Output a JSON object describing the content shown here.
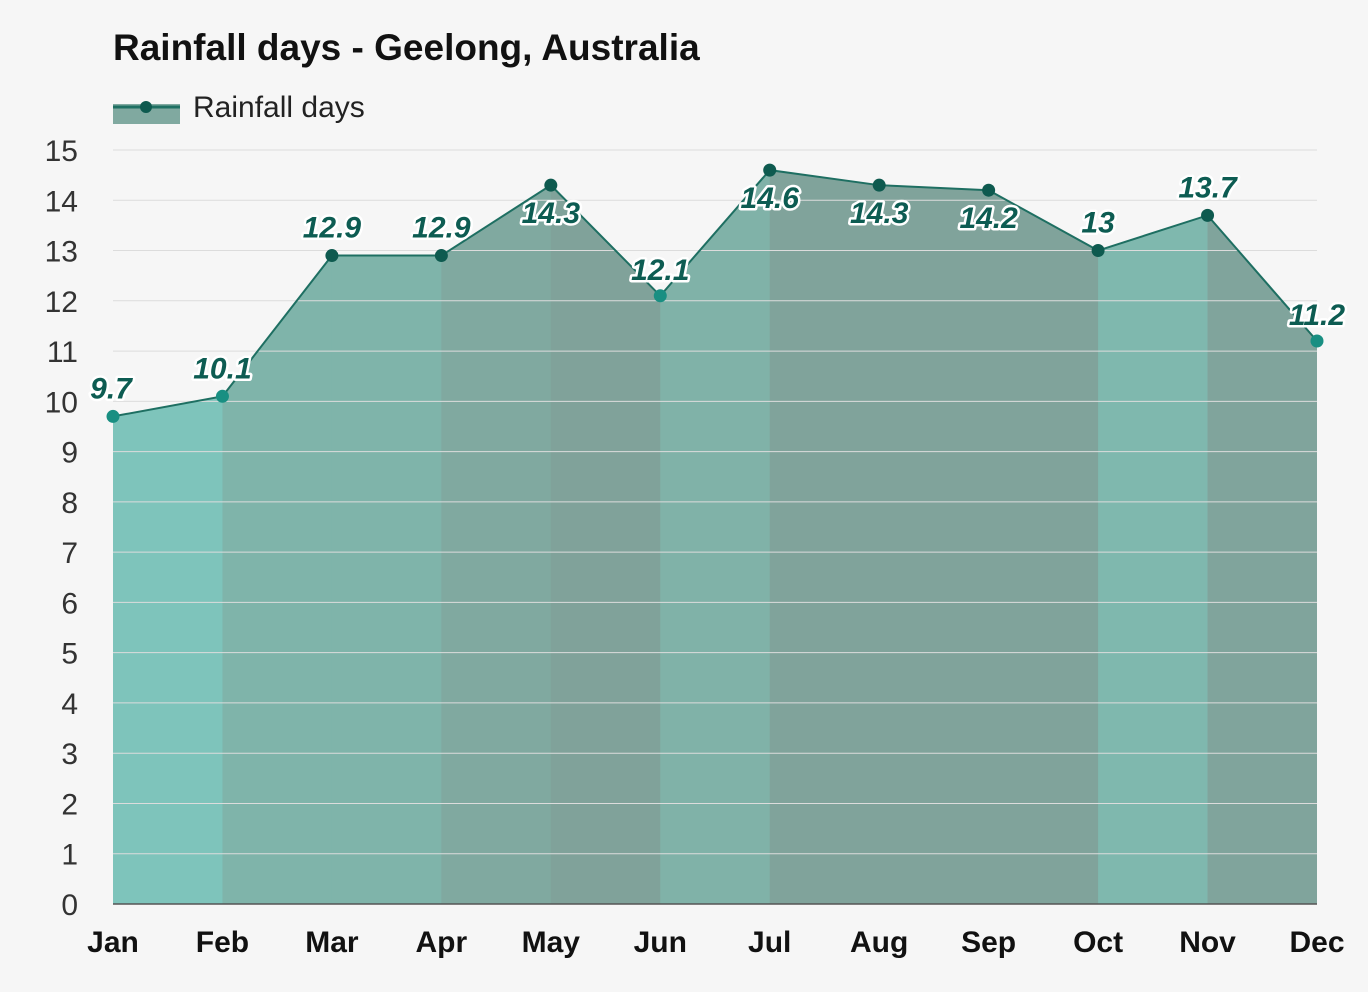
{
  "chart_data": {
    "type": "area",
    "title": "Rainfall days - Geelong, Australia",
    "legend": {
      "label": "Rainfall days",
      "placement": "top-left"
    },
    "categories": [
      "Jan",
      "Feb",
      "Mar",
      "Apr",
      "May",
      "Jun",
      "Jul",
      "Aug",
      "Sep",
      "Oct",
      "Nov",
      "Dec"
    ],
    "series": [
      {
        "name": "Rainfall days",
        "values": [
          9.7,
          10.1,
          12.9,
          12.9,
          14.3,
          12.1,
          14.6,
          14.3,
          14.2,
          13,
          13.7,
          11.2
        ]
      }
    ],
    "data_labels": [
      "9.7",
      "10.1",
      "12.9",
      "12.9",
      "14.3",
      "12.1",
      "14.6",
      "14.3",
      "14.2",
      "13",
      "13.7",
      "11.2"
    ],
    "yticks": [
      "0",
      "1",
      "2",
      "3",
      "4",
      "5",
      "6",
      "7",
      "8",
      "9",
      "10",
      "11",
      "12",
      "13",
      "14",
      "15"
    ],
    "ylim": [
      0,
      15
    ],
    "grid": true,
    "colors": {
      "line": "#1e6f62",
      "marker": "#0e5a4f",
      "label": "#0d5c52",
      "band_fills": [
        "#7ec4bb",
        "#7fb4aa",
        "#7fb4aa",
        "#80a9a0",
        "#80a29a",
        "#80b2a8",
        "#80a39b",
        "#80a39b",
        "#80a39b",
        "#7fb8ae",
        "#80a49c",
        "#7fbdb3"
      ]
    }
  }
}
